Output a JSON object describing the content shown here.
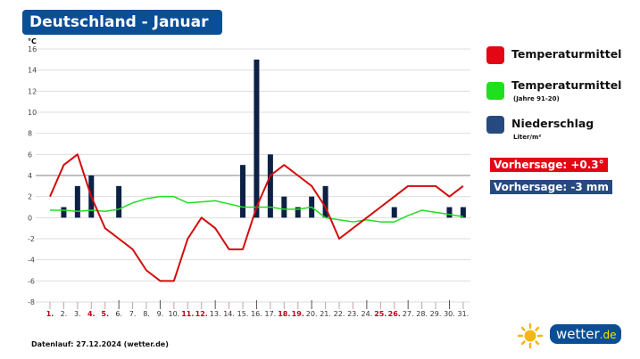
{
  "header": {
    "title": "Deutschland - Januar"
  },
  "legend": {
    "items": [
      {
        "label": "Temperaturmittel",
        "sub": "",
        "color": "#e30613"
      },
      {
        "label": "Temperaturmittel",
        "sub": "(Jahre 91-20)",
        "color": "#1ee01e"
      },
      {
        "label": "Niederschlag",
        "sub": "Liter/m²",
        "color": "#1d3f78"
      }
    ],
    "forecast_temp": "Vorhersage: +0.3°",
    "forecast_temp_color": "#e30613",
    "forecast_precip": "Vorhersage: -3 mm",
    "forecast_precip_color": "#264a80"
  },
  "footer": {
    "datenlauf": "Datenlauf: 27.12.2024 (wetter.de)"
  },
  "logo": {
    "text": "wetter",
    "tld": ".de"
  },
  "chart_data": {
    "type": "line+bar",
    "ylabel": "°C",
    "ylim": [
      -8,
      16
    ],
    "yticks": [
      -8,
      -6,
      -4,
      -2,
      0,
      2,
      4,
      6,
      8,
      10,
      12,
      14,
      16
    ],
    "grid": true,
    "legend_position": "right",
    "categories": [
      "1.",
      "2.",
      "3.",
      "4.",
      "5.",
      "6.",
      "7.",
      "8.",
      "9.",
      "10.",
      "11.",
      "12.",
      "13.",
      "14.",
      "15.",
      "16.",
      "17.",
      "18.",
      "19.",
      "20.",
      "21.",
      "22.",
      "23.",
      "24.",
      "25.",
      "26.",
      "27.",
      "28.",
      "29.",
      "30.",
      "31."
    ],
    "weekend_days": [
      1,
      4,
      5,
      11,
      12,
      18,
      19,
      25,
      26
    ],
    "series": [
      {
        "name": "Temperaturmittel",
        "type": "line",
        "color": "#d40b0b",
        "values": [
          2,
          5,
          6,
          2,
          -1,
          -2,
          -3,
          -5,
          -6,
          -6,
          -2,
          0,
          -1,
          -3,
          -3,
          1,
          4,
          5,
          4,
          3,
          1,
          -2,
          -1,
          0,
          1,
          2,
          3,
          3,
          3,
          2,
          3
        ]
      },
      {
        "name": "Temperaturmittel (Jahre 91-20)",
        "type": "line",
        "color": "#22dd22",
        "values": [
          0.7,
          0.7,
          0.6,
          0.7,
          0.6,
          0.8,
          1.4,
          1.8,
          2,
          2,
          1.4,
          1.5,
          1.6,
          1.3,
          1,
          1,
          1,
          0.8,
          0.8,
          1,
          0,
          -0.2,
          -0.4,
          -0.2,
          -0.4,
          -0.4,
          0.2,
          0.7,
          0.5,
          0.3,
          0.1
        ]
      },
      {
        "name": "Niederschlag",
        "type": "bar",
        "color": "#0d2145",
        "values": [
          0,
          1,
          3,
          4,
          0,
          3,
          0,
          0,
          0,
          0,
          0,
          0,
          0,
          0,
          5,
          15,
          6,
          2,
          1,
          2,
          3,
          0,
          0,
          0,
          0,
          1,
          0,
          0,
          0,
          1,
          1
        ]
      }
    ]
  }
}
